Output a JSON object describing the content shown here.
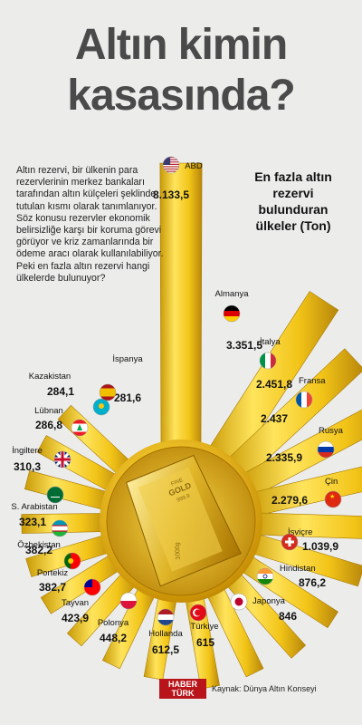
{
  "title_line1": "Altın kimin",
  "title_line2": "kasasında?",
  "intro": "Altın rezervi, bir ülkenin para rezervlerinin merkez bankaları tarafından altın külçeleri şeklinde tutulan kısmı olarak tanımlanıyor. Söz konusu rezervler ekonomik belirsizliğe karşı bir koruma görevi görüyor ve kriz zamanlarında bir ödeme aracı olarak kullanılabiliyor. Peki en fazla altın rezervi hangi ülkelerde bulunuyor?",
  "subtitle": "En fazla altın rezervi bulunduran ülkeler (Ton)",
  "bar_engraving": {
    "line1": "FINE",
    "line2": "GOLD",
    "line3": "999.9",
    "weight": "1000g"
  },
  "logo": {
    "line1": "HABER",
    "line2": "TÜRK"
  },
  "source": "Kaynak: Dünya Altın Konseyi",
  "colors": {
    "gold": "#e8c21e",
    "gold_dark": "#b8860b",
    "gold_light": "#fff2a0",
    "background": "#ececeb",
    "logo_red": "#b8141a"
  },
  "chart_data": {
    "type": "bar",
    "layout": "radial",
    "title": "En fazla altın rezervi bulunduran ülkeler (Ton)",
    "categories": [
      "ABD",
      "Almanya",
      "İtalya",
      "Fransa",
      "Rusya",
      "Çin",
      "İsviçre",
      "Hindistan",
      "Japonya",
      "Türkiye",
      "Hollanda",
      "Polonya",
      "Tayvan",
      "Portekiz",
      "Özbekistan",
      "S. Arabistan",
      "İngiltere",
      "Lübnan",
      "Kazakistan",
      "İspanya"
    ],
    "values": [
      8133.5,
      3351.5,
      2451.8,
      2437,
      2335.9,
      2279.6,
      1039.9,
      876.2,
      846,
      615,
      612.5,
      448.2,
      423.9,
      382.7,
      382.2,
      323.1,
      310.3,
      286.8,
      284.1,
      281.6
    ],
    "value_labels": [
      "8.133,5",
      "3.351,5",
      "2.451,8",
      "2.437",
      "2.335,9",
      "2.279,6",
      "1.039,9",
      "876,2",
      "846",
      "615",
      "612,5",
      "448,2",
      "423,9",
      "382,7",
      "382,2",
      "323,1",
      "310,3",
      "286,8",
      "284,1",
      "281,6"
    ],
    "flag_icons": [
      "usa-flag-icon",
      "germany-flag-icon",
      "italy-flag-icon",
      "france-flag-icon",
      "russia-flag-icon",
      "china-flag-icon",
      "switzerland-flag-icon",
      "india-flag-icon",
      "japan-flag-icon",
      "turkey-flag-icon",
      "netherlands-flag-icon",
      "poland-flag-icon",
      "taiwan-flag-icon",
      "portugal-flag-icon",
      "uzbekistan-flag-icon",
      "saudi-arabia-flag-icon",
      "uk-flag-icon",
      "lebanon-flag-icon",
      "kazakhstan-flag-icon",
      "spain-flag-icon"
    ],
    "unit": "Ton"
  }
}
